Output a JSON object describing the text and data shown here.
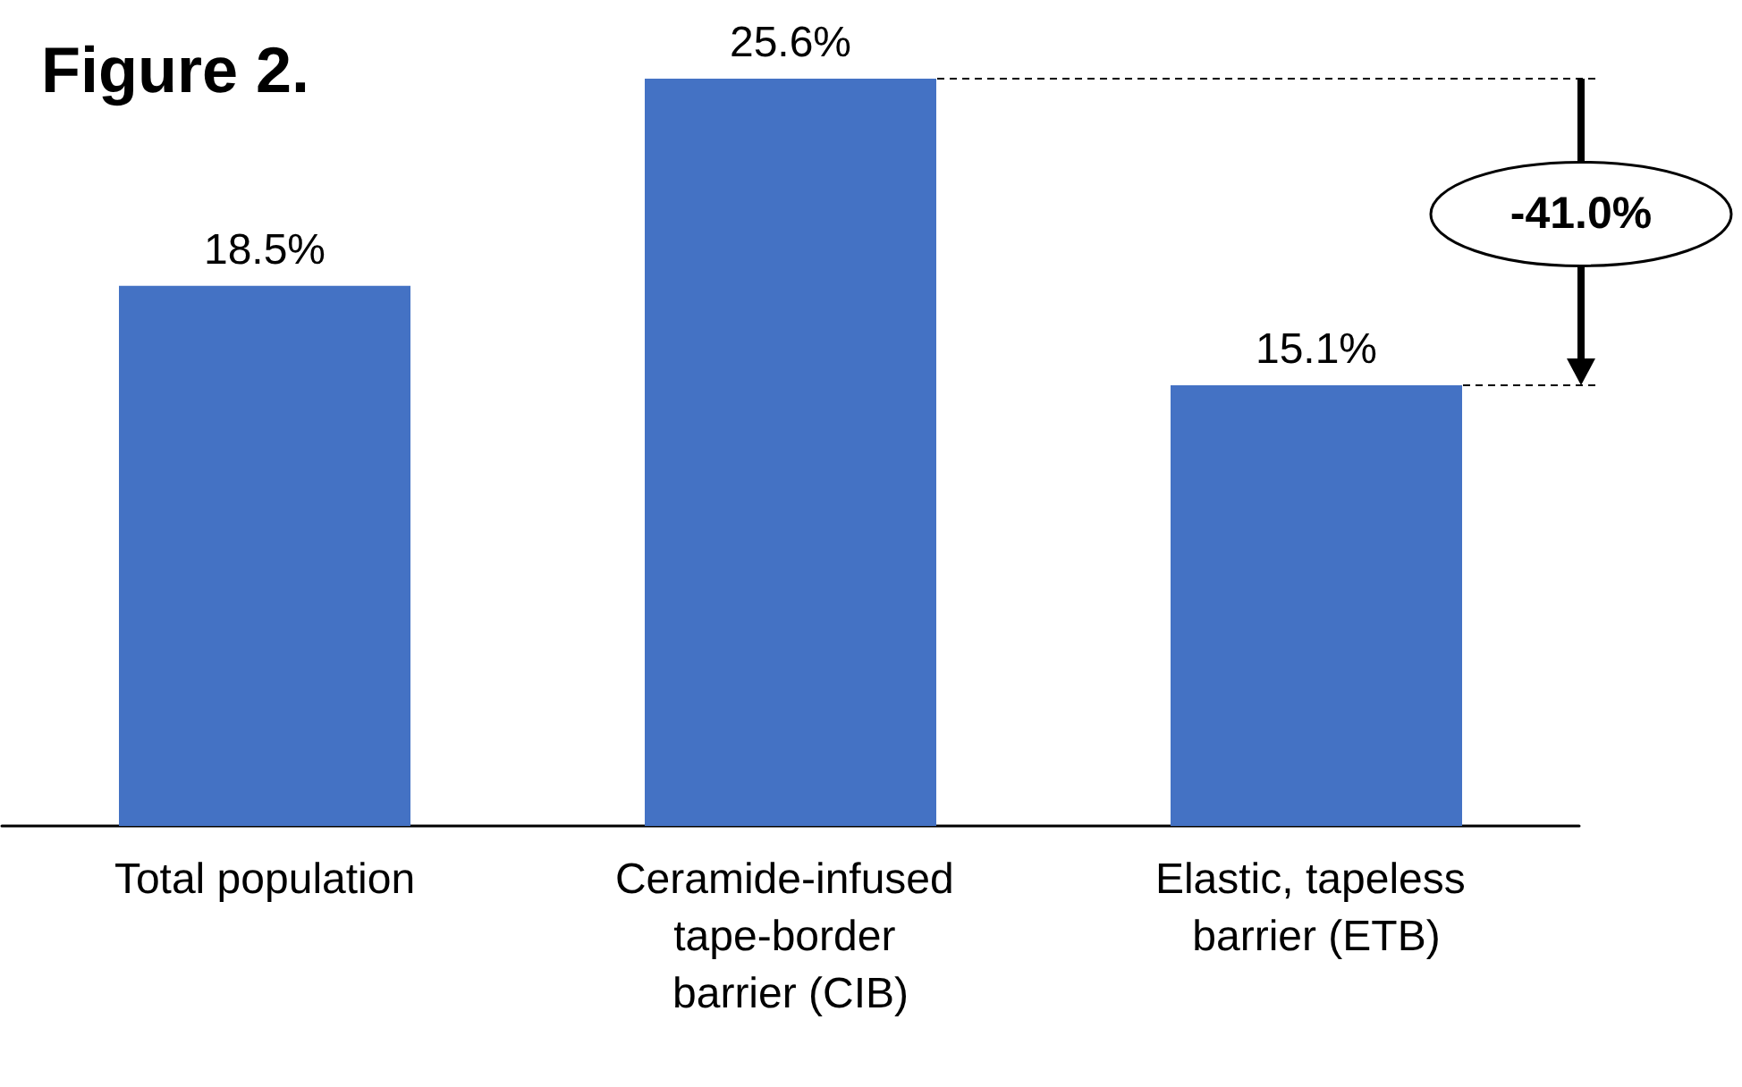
{
  "chart_data": {
    "type": "bar",
    "title": "Figure 2.",
    "categories": [
      "Total population",
      "Ceramide-infused tape-border barrier (CIB)",
      "Elastic, tapeless barrier (ETB)"
    ],
    "values": [
      18.5,
      25.6,
      15.1
    ],
    "color": "#4472c4",
    "value_labels": [
      "18.5%",
      "25.6%",
      "15.1%"
    ],
    "annotations": [
      "-41.0%"
    ]
  }
}
